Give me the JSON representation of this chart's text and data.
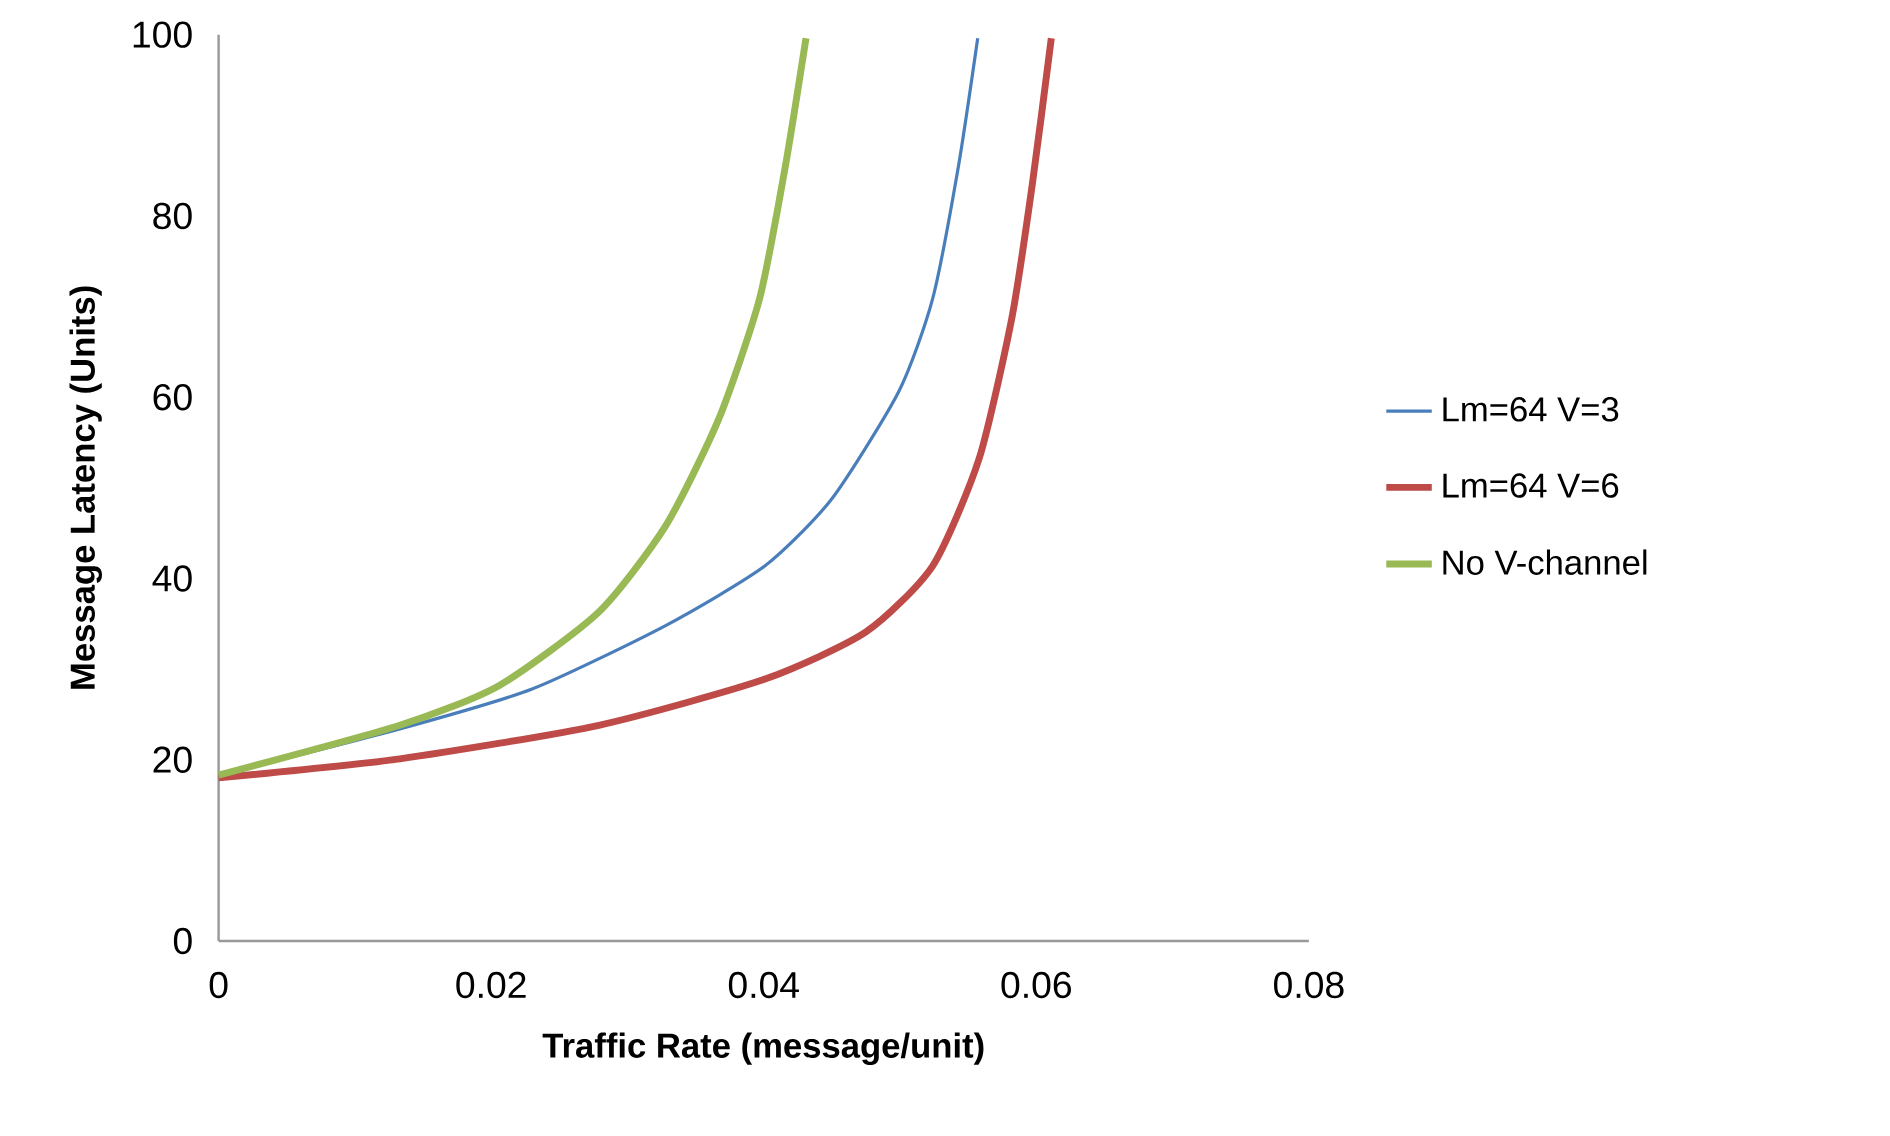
{
  "chart_data": {
    "type": "line",
    "xlabel": "Traffic Rate (message/unit)",
    "ylabel": "Message Latency (Units)",
    "xlim": [
      0,
      0.08
    ],
    "xticks": [
      0,
      0.02,
      0.04,
      0.06,
      0.08
    ],
    "ylim": [
      0,
      100
    ],
    "yticks": [
      0,
      20,
      40,
      60,
      80,
      100
    ],
    "grid": false,
    "legend": "right",
    "marker": "none",
    "series": [
      {
        "name": "Lm=64 V=3",
        "color": "#4a7ebb",
        "x": [
          0,
          0.0133,
          0.023,
          0.0328,
          0.0401,
          0.045,
          0.0499,
          0.0524,
          0.0543,
          0.0557
        ],
        "values": [
          18.3,
          23.4,
          27.8,
          34.8,
          41.4,
          48.8,
          60.6,
          70.9,
          85.6,
          99.6
        ]
      },
      {
        "name": "Lm=64 V=6",
        "color": "#be4b48",
        "x": [
          0,
          0.0133,
          0.0279,
          0.0401,
          0.0475,
          0.0524,
          0.0558,
          0.0582,
          0.0597,
          0.0611
        ],
        "values": [
          18,
          20.1,
          23.8,
          28.9,
          34.1,
          41.4,
          53.2,
          68.7,
          83.4,
          99.6
        ]
      },
      {
        "name": "No V-channel",
        "color": "#98b954",
        "x": [
          0,
          0.0133,
          0.0206,
          0.0279,
          0.0328,
          0.0367,
          0.0397,
          0.0416,
          0.0431
        ],
        "values": [
          18.3,
          23.8,
          28.2,
          36.3,
          45.8,
          57.6,
          70.9,
          85.6,
          99.6
        ]
      }
    ]
  }
}
